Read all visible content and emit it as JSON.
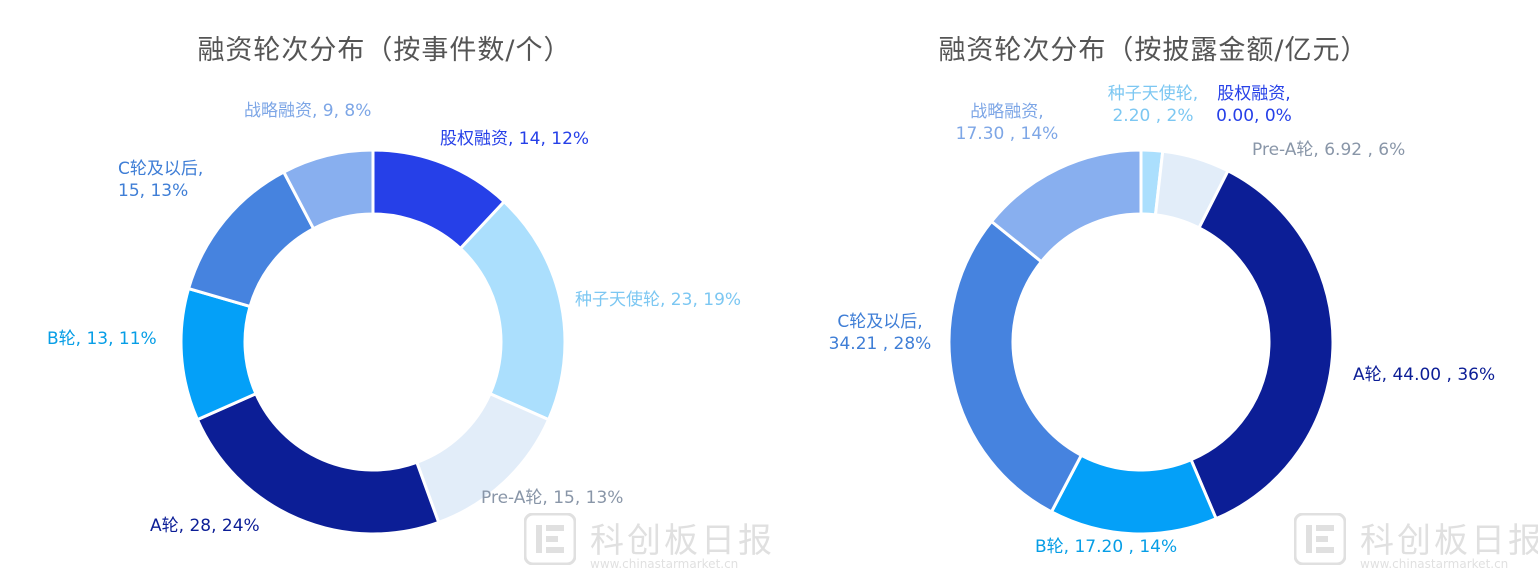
{
  "chart_data": [
    {
      "type": "pie",
      "variant": "donut",
      "title": "融资轮次分布（按事件数/个）",
      "slices": [
        {
          "name": "股权融资",
          "value": 14,
          "pct": "12%",
          "color": "#2640e8",
          "label_value": "14",
          "label_sep": ","
        },
        {
          "name": "种子天使轮",
          "value": 23,
          "pct": "19%",
          "color": "#abdffd",
          "label_value": "23",
          "label_sep": ","
        },
        {
          "name": "Pre-A轮",
          "value": 15,
          "pct": "13%",
          "color": "#e2edf9",
          "label_value": "15",
          "label_sep": ","
        },
        {
          "name": "A轮",
          "value": 28,
          "pct": "24%",
          "color": "#0c1e96",
          "label_value": "28",
          "label_sep": ","
        },
        {
          "name": "B轮",
          "value": 13,
          "pct": "11%",
          "color": "#04a0f8",
          "label_value": "13",
          "label_sep": ","
        },
        {
          "name": "C轮及以后,",
          "value": 15,
          "pct": "13%",
          "color": "#4683df",
          "label_value": "15",
          "label_sep": ","
        },
        {
          "name": "战略融资",
          "value": 9,
          "pct": "8%",
          "color": "#88afef",
          "label_value": "9",
          "label_sep": ","
        }
      ]
    },
    {
      "type": "pie",
      "variant": "donut",
      "title": "融资轮次分布（按披露金额/亿元）",
      "slices": [
        {
          "name": "种子天使轮,",
          "value": 2.2,
          "pct": "2%",
          "color": "#abdffd",
          "label_value": "2.20",
          "label_sep": " ,"
        },
        {
          "name": "股权融资,",
          "value": 0.0,
          "pct": "0%",
          "color": "#2640e8",
          "label_value": "0.00",
          "label_sep": ","
        },
        {
          "name": "Pre-A轮",
          "value": 6.92,
          "pct": "6%",
          "color": "#e2edf9",
          "label_value": "6.92",
          "label_sep": " ,"
        },
        {
          "name": "A轮",
          "value": 44.0,
          "pct": "36%",
          "color": "#0c1e96",
          "label_value": "44.00",
          "label_sep": " ,"
        },
        {
          "name": "B轮",
          "value": 17.2,
          "pct": "14%",
          "color": "#04a0f8",
          "label_value": "17.20",
          "label_sep": " ,"
        },
        {
          "name": "C轮及以后,",
          "value": 34.21,
          "pct": "28%",
          "color": "#4683df",
          "label_value": "34.21",
          "label_sep": " ,"
        },
        {
          "name": "战略融资,",
          "value": 17.3,
          "pct": "14%",
          "color": "#88afef",
          "label_value": "17.30",
          "label_sep": " ,"
        }
      ]
    }
  ],
  "watermark": {
    "text": "科创板日报",
    "url": "www.chinastarmarket.cn"
  }
}
